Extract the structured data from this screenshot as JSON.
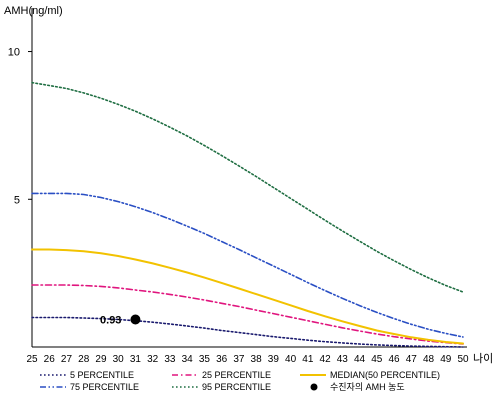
{
  "chart_data": {
    "type": "line",
    "ylabel": "AMH(ng/ml)",
    "xlabel": "나이",
    "x": [
      25,
      26,
      27,
      28,
      29,
      30,
      31,
      32,
      33,
      34,
      35,
      36,
      37,
      38,
      39,
      40,
      41,
      42,
      43,
      44,
      45,
      46,
      47,
      48,
      49,
      50
    ],
    "xlim": [
      25,
      50
    ],
    "ylim": [
      0,
      11
    ],
    "y_ticks": [
      5,
      10
    ],
    "grid": false,
    "legend_position": "bottom",
    "series": [
      {
        "name": "5 PERCENTILE",
        "color": "#1a1a6e",
        "dash": "dotted",
        "values": [
          1.0,
          1.0,
          1.0,
          0.98,
          0.96,
          0.93,
          0.89,
          0.84,
          0.78,
          0.71,
          0.64,
          0.56,
          0.49,
          0.42,
          0.35,
          0.29,
          0.23,
          0.18,
          0.14,
          0.1,
          0.07,
          0.05,
          0.03,
          0.02,
          0.01,
          0.0
        ]
      },
      {
        "name": "25 PERCENTILE",
        "color": "#e0157e",
        "dash": "dashdot",
        "values": [
          2.1,
          2.1,
          2.1,
          2.08,
          2.05,
          2.0,
          1.93,
          1.86,
          1.78,
          1.69,
          1.59,
          1.48,
          1.37,
          1.25,
          1.13,
          1.01,
          0.89,
          0.77,
          0.65,
          0.54,
          0.44,
          0.35,
          0.27,
          0.2,
          0.15,
          0.1
        ]
      },
      {
        "name": "MEDIAN(50 PERCENTILE)",
        "color": "#f2c200",
        "dash": "solid",
        "values": [
          3.3,
          3.3,
          3.28,
          3.24,
          3.17,
          3.08,
          2.96,
          2.83,
          2.68,
          2.52,
          2.35,
          2.17,
          1.98,
          1.79,
          1.6,
          1.41,
          1.22,
          1.04,
          0.87,
          0.71,
          0.56,
          0.44,
          0.33,
          0.24,
          0.17,
          0.12
        ]
      },
      {
        "name": "75 PERCENTILE",
        "color": "#2a4fc4",
        "dash": "dashdotdot",
        "values": [
          5.2,
          5.2,
          5.2,
          5.16,
          5.06,
          4.92,
          4.75,
          4.55,
          4.33,
          4.09,
          3.84,
          3.57,
          3.3,
          3.02,
          2.74,
          2.46,
          2.18,
          1.91,
          1.65,
          1.4,
          1.17,
          0.96,
          0.77,
          0.6,
          0.46,
          0.34
        ]
      },
      {
        "name": "95 PERCENTILE",
        "color": "#1f6e42",
        "dash": "dotted",
        "values": [
          8.95,
          8.85,
          8.75,
          8.6,
          8.42,
          8.21,
          7.98,
          7.72,
          7.44,
          7.14,
          6.82,
          6.48,
          6.13,
          5.77,
          5.4,
          5.03,
          4.66,
          4.29,
          3.93,
          3.58,
          3.24,
          2.92,
          2.62,
          2.34,
          2.08,
          1.86
        ]
      }
    ],
    "patient_point": {
      "label": "수진자의 AMH 농도",
      "x": 31,
      "y": 0.93,
      "value_label": "0.93",
      "color": "#000000"
    },
    "legend_order": [
      "5 PERCENTILE",
      "25 PERCENTILE",
      "MEDIAN(50 PERCENTILE)",
      "75 PERCENTILE",
      "95 PERCENTILE",
      "수진자의 AMH 농도"
    ]
  }
}
